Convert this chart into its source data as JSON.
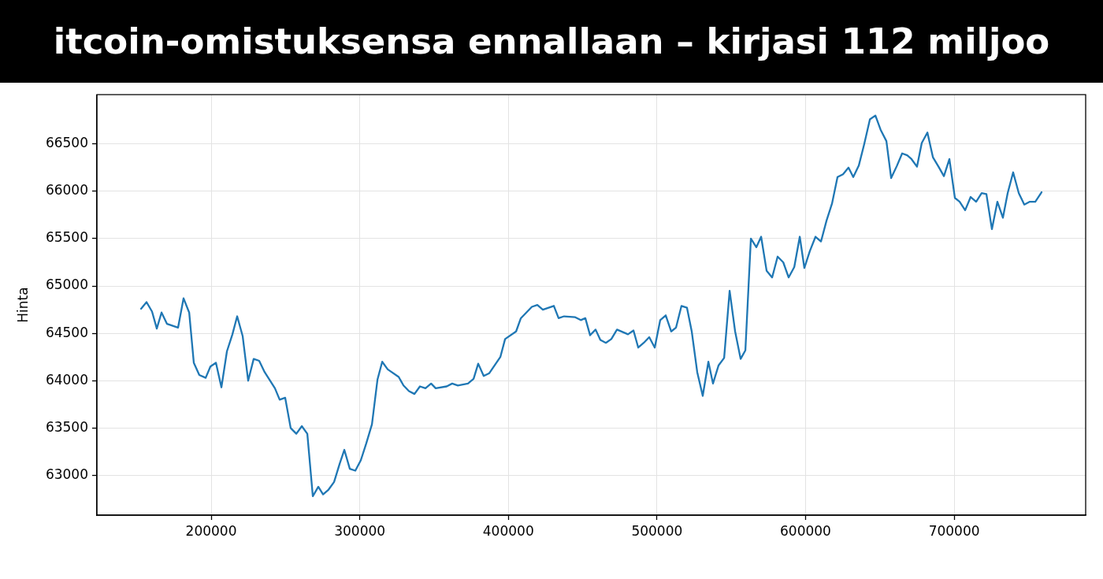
{
  "chart_data": {
    "type": "line",
    "title": "itcoin-omistuksensa ennallaan – kirjasi 112 miljoo",
    "ylabel": "Hinta",
    "x": [
      152800,
      156500,
      160200,
      163400,
      166600,
      170300,
      177700,
      181400,
      185200,
      188300,
      192000,
      196300,
      199500,
      203200,
      206900,
      210600,
      214300,
      217500,
      221200,
      224900,
      228600,
      232300,
      236000,
      242900,
      246100,
      249800,
      253500,
      257300,
      261000,
      264700,
      268400,
      272100,
      275300,
      279000,
      282700,
      286400,
      289600,
      293300,
      297000,
      300700,
      304400,
      308200,
      311900,
      315100,
      318800,
      326200,
      329400,
      333100,
      336800,
      340500,
      344200,
      348000,
      351100,
      358500,
      362200,
      366000,
      372800,
      376600,
      379700,
      383400,
      387200,
      394600,
      397800,
      405200,
      408400,
      412100,
      415800,
      419500,
      423200,
      430600,
      433800,
      437500,
      445000,
      448700,
      451800,
      455000,
      458700,
      461900,
      465600,
      469300,
      473100,
      480500,
      484200,
      487400,
      491100,
      494800,
      498500,
      502200,
      505900,
      509600,
      512800,
      516500,
      520200,
      523400,
      527100,
      530800,
      534600,
      537700,
      541400,
      545200,
      548900,
      552600,
      556300,
      559500,
      563200,
      566900,
      570100,
      573800,
      577500,
      581200,
      585000,
      588600,
      592400,
      596100,
      599200,
      602900,
      606700,
      610400,
      614100,
      617800,
      621500,
      625200,
      628900,
      632100,
      635800,
      639500,
      643300,
      647000,
      650500,
      654400,
      657600,
      661500,
      665000,
      668400,
      671300,
      675000,
      678200,
      682000,
      685700,
      689500,
      693100,
      696800,
      700500,
      703700,
      707400,
      711100,
      714800,
      718500,
      721700,
      725400,
      729100,
      732800,
      736000,
      739700,
      743500,
      747200,
      750900,
      754600,
      758800
    ],
    "series": [
      {
        "color": "#1f77b4",
        "values": [
          64760,
          64830,
          64730,
          64550,
          64720,
          64600,
          64560,
          64870,
          64720,
          64190,
          64060,
          64030,
          64150,
          64190,
          63930,
          64310,
          64490,
          64680,
          64470,
          64000,
          64230,
          64210,
          64090,
          63920,
          63800,
          63820,
          63500,
          63440,
          63520,
          63440,
          62780,
          62880,
          62800,
          62850,
          62930,
          63120,
          63270,
          63070,
          63050,
          63160,
          63340,
          63540,
          64010,
          64200,
          64120,
          64040,
          63950,
          63890,
          63860,
          63940,
          63920,
          63970,
          63920,
          63940,
          63970,
          63950,
          63970,
          64020,
          64180,
          64050,
          64080,
          64250,
          64440,
          64520,
          64660,
          64720,
          64780,
          64800,
          64750,
          64790,
          64660,
          64680,
          64670,
          64640,
          64660,
          64480,
          64540,
          64430,
          64400,
          64440,
          64540,
          64490,
          64530,
          64350,
          64400,
          64460,
          64350,
          64640,
          64690,
          64520,
          64560,
          64790,
          64770,
          64520,
          64090,
          63840,
          64200,
          63970,
          64160,
          64240,
          64950,
          64520,
          64230,
          64320,
          65500,
          65410,
          65520,
          65160,
          65090,
          65310,
          65250,
          65090,
          65200,
          65520,
          65190,
          65370,
          65520,
          65470,
          65690,
          65870,
          66150,
          66180,
          66250,
          66150,
          66270,
          66500,
          66760,
          66800,
          66650,
          66530,
          66140,
          66270,
          66400,
          66380,
          66340,
          66260,
          66510,
          66620,
          66360,
          66260,
          66160,
          66340,
          65930,
          65890,
          65800,
          65940,
          65890,
          65980,
          65970,
          65600,
          65890,
          65720,
          65980,
          66200,
          65980,
          65860,
          65890,
          65890,
          65990
        ]
      }
    ],
    "xlim": [
      123100,
      788500
    ],
    "xticks": [
      200000,
      300000,
      400000,
      500000,
      600000,
      700000
    ],
    "ylim": [
      62580,
      67020
    ],
    "yticks": [
      63000,
      63500,
      64000,
      64500,
      65000,
      65500,
      66000,
      66500
    ],
    "grid": true
  }
}
